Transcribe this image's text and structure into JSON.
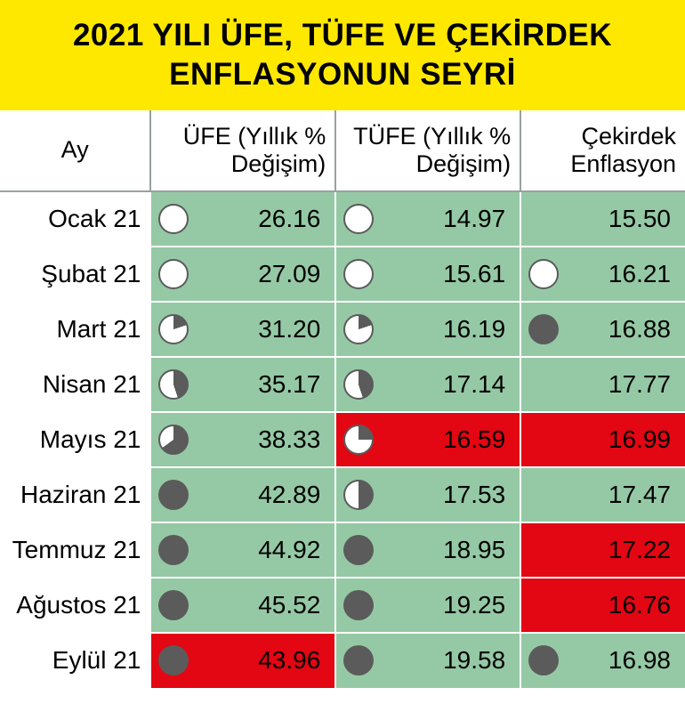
{
  "title": {
    "line1": "2021 YILI ÜFE, TÜFE VE ÇEKİRDEK",
    "line2": "ENFLASYONUN SEYRİ"
  },
  "colors": {
    "title_bg": "#ffe800",
    "title_fg": "#000000",
    "cell_green": "#95c9a5",
    "cell_red": "#e30613",
    "pie_ring": "#5b5b5b",
    "pie_fill": "#5b5b5b",
    "pie_empty": "#ffffff",
    "grid_line": "#ffffff",
    "header_line": "#9aa0a0"
  },
  "headers": {
    "month": "Ay",
    "ufe": "ÜFE (Yıllık % Değişim)",
    "tufe": "TÜFE (Yıllık % Değişim)",
    "cek": "Çekirdek Enflasyon"
  },
  "rows": [
    {
      "month": "Ocak 21",
      "ufe": {
        "value": "26.16",
        "bg": "green",
        "pie": 0.0
      },
      "tufe": {
        "value": "14.97",
        "bg": "green",
        "pie": 0.0
      },
      "cek": {
        "value": "15.50",
        "bg": "green",
        "pie": null
      }
    },
    {
      "month": "Şubat 21",
      "ufe": {
        "value": "27.09",
        "bg": "green",
        "pie": 0.0
      },
      "tufe": {
        "value": "15.61",
        "bg": "green",
        "pie": 0.0
      },
      "cek": {
        "value": "16.21",
        "bg": "green",
        "pie": 0.0
      }
    },
    {
      "month": "Mart 21",
      "ufe": {
        "value": "31.20",
        "bg": "green",
        "pie": 0.2
      },
      "tufe": {
        "value": "16.19",
        "bg": "green",
        "pie": 0.2
      },
      "cek": {
        "value": "16.88",
        "bg": "green",
        "pie": 1.0
      }
    },
    {
      "month": "Nisan 21",
      "ufe": {
        "value": "35.17",
        "bg": "green",
        "pie": 0.45
      },
      "tufe": {
        "value": "17.14",
        "bg": "green",
        "pie": 0.45
      },
      "cek": {
        "value": "17.77",
        "bg": "green",
        "pie": null
      }
    },
    {
      "month": "Mayıs 21",
      "ufe": {
        "value": "38.33",
        "bg": "green",
        "pie": 0.65
      },
      "tufe": {
        "value": "16.59",
        "bg": "red",
        "pie": 0.25
      },
      "cek": {
        "value": "16.99",
        "bg": "red",
        "pie": null
      }
    },
    {
      "month": "Haziran 21",
      "ufe": {
        "value": "42.89",
        "bg": "green",
        "pie": 1.0
      },
      "tufe": {
        "value": "17.53",
        "bg": "green",
        "pie": 0.5
      },
      "cek": {
        "value": "17.47",
        "bg": "green",
        "pie": null
      }
    },
    {
      "month": "Temmuz 21",
      "ufe": {
        "value": "44.92",
        "bg": "green",
        "pie": 1.0
      },
      "tufe": {
        "value": "18.95",
        "bg": "green",
        "pie": 1.0
      },
      "cek": {
        "value": "17.22",
        "bg": "red",
        "pie": null
      }
    },
    {
      "month": "Ağustos 21",
      "ufe": {
        "value": "45.52",
        "bg": "green",
        "pie": 1.0
      },
      "tufe": {
        "value": "19.25",
        "bg": "green",
        "pie": 1.0
      },
      "cek": {
        "value": "16.76",
        "bg": "red",
        "pie": null
      }
    },
    {
      "month": "Eylül 21",
      "ufe": {
        "value": "43.96",
        "bg": "red",
        "pie": 1.0
      },
      "tufe": {
        "value": "19.58",
        "bg": "green",
        "pie": 1.0
      },
      "cek": {
        "value": "16.98",
        "bg": "green",
        "pie": 1.0
      }
    }
  ]
}
